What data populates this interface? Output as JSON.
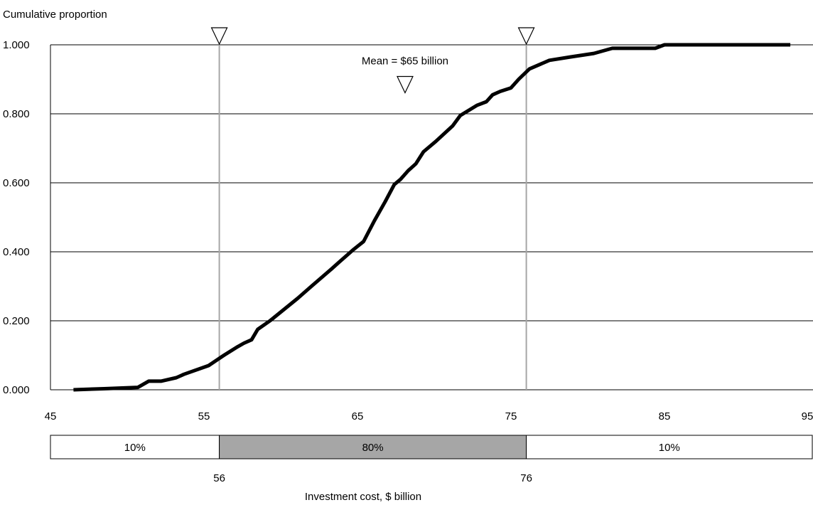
{
  "chart_data": {
    "type": "line",
    "title": "",
    "ylabel": "Cumulative proportion",
    "xlabel": "Investment cost, $ billion",
    "xlim": [
      45,
      95
    ],
    "ylim": [
      0,
      1
    ],
    "x_ticks": [
      "45",
      "55",
      "65",
      "75",
      "85",
      "95"
    ],
    "x_tick_values": [
      45,
      55,
      65,
      75,
      85,
      95
    ],
    "y_ticks": [
      "0.000",
      "0.200",
      "0.400",
      "0.600",
      "0.800",
      "1.000"
    ],
    "y_tick_values": [
      0,
      0.2,
      0.4,
      0.6,
      0.8,
      1.0
    ],
    "grid": "horizontal",
    "series": [
      {
        "x": [
          46.5,
          48.5,
          50.7,
          51.4,
          52.2,
          53.2,
          53.7,
          55.3,
          56.3,
          57.2,
          57.6,
          58.1,
          58.5,
          59.3,
          61.1,
          62.0,
          63.3,
          63.8,
          64.7,
          65.4,
          66.1,
          66.8,
          67.4,
          67.8,
          68.3,
          68.8,
          69.3,
          70.1,
          71.2,
          71.7,
          72.8,
          73.4,
          73.8,
          74.3,
          75.0,
          75.5,
          76.2,
          77.5,
          78.9,
          80.4,
          81.6,
          84.4,
          85.0,
          93.2
        ],
        "y": [
          0.0,
          0.003,
          0.007,
          0.025,
          0.025,
          0.035,
          0.045,
          0.07,
          0.1,
          0.125,
          0.135,
          0.145,
          0.175,
          0.2,
          0.265,
          0.3,
          0.35,
          0.37,
          0.405,
          0.43,
          0.49,
          0.545,
          0.595,
          0.61,
          0.635,
          0.655,
          0.69,
          0.72,
          0.765,
          0.795,
          0.825,
          0.835,
          0.855,
          0.865,
          0.875,
          0.9,
          0.93,
          0.955,
          0.965,
          0.975,
          0.99,
          0.99,
          1.0,
          1.0
        ]
      }
    ],
    "markers": [
      {
        "x": 56.0,
        "label": ""
      },
      {
        "x": 76.0,
        "label": ""
      }
    ],
    "mean": {
      "x": 68.1,
      "y": 0.865,
      "label": "Mean = $65 billion"
    },
    "bands": [
      {
        "from": 45,
        "to": 56,
        "label": "10%",
        "color": "#ffffff"
      },
      {
        "from": 56,
        "to": 76,
        "label": "80%",
        "color": "#a6a6a6"
      },
      {
        "from": 76,
        "to": 95,
        "label": "10%",
        "color": "#ffffff"
      }
    ],
    "band_edge_labels": [
      "56",
      "76"
    ],
    "colors": {
      "line": "#000000",
      "grid": "#000000",
      "marker_line": "#a6a6a6",
      "shade": "#a6a6a6"
    }
  }
}
